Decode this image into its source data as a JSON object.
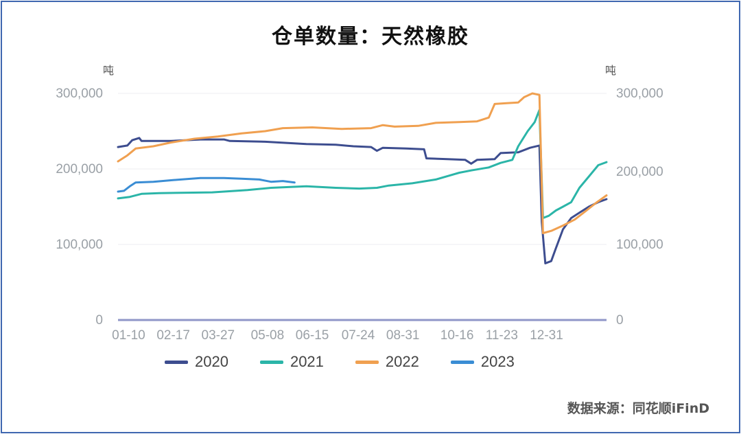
{
  "chart_data": {
    "type": "line",
    "title": "仓单数量：天然橡胶",
    "ylabel_left": "吨",
    "ylabel_right": "吨",
    "ylim": [
      0,
      300000
    ],
    "yticks_left": [
      "0",
      "100,000",
      "200,000",
      "300,000"
    ],
    "yticks_right": [
      "0",
      "100,000",
      "200,000",
      "300,000"
    ],
    "x_range_days": [
      0,
      365
    ],
    "xticks": [
      {
        "label": "01-10",
        "day": 9
      },
      {
        "label": "02-17",
        "day": 47
      },
      {
        "label": "03-27",
        "day": 85
      },
      {
        "label": "05-08",
        "day": 127
      },
      {
        "label": "06-15",
        "day": 165
      },
      {
        "label": "07-24",
        "day": 204
      },
      {
        "label": "08-31",
        "day": 242
      },
      {
        "label": "10-16",
        "day": 288
      },
      {
        "label": "11-23",
        "day": 326
      },
      {
        "label": "12-31",
        "day": 364
      }
    ],
    "grid": true,
    "legend_position": "bottom",
    "series": [
      {
        "name": "2020",
        "color": "#3d4d8f",
        "points": [
          [
            0,
            229000
          ],
          [
            8,
            231000
          ],
          [
            12,
            238000
          ],
          [
            18,
            241000
          ],
          [
            20,
            237000
          ],
          [
            45,
            237000
          ],
          [
            70,
            239000
          ],
          [
            90,
            239000
          ],
          [
            95,
            237000
          ],
          [
            125,
            236000
          ],
          [
            160,
            233000
          ],
          [
            185,
            232000
          ],
          [
            200,
            230000
          ],
          [
            215,
            229000
          ],
          [
            220,
            224000
          ],
          [
            225,
            228000
          ],
          [
            245,
            227000
          ],
          [
            260,
            226000
          ],
          [
            262,
            214000
          ],
          [
            280,
            213000
          ],
          [
            295,
            212000
          ],
          [
            300,
            207000
          ],
          [
            305,
            212000
          ],
          [
            320,
            213000
          ],
          [
            325,
            221000
          ],
          [
            340,
            222000
          ],
          [
            350,
            228000
          ],
          [
            358,
            231000
          ],
          [
            360,
            130000
          ],
          [
            363,
            75000
          ],
          [
            368,
            78000
          ],
          [
            372,
            95000
          ],
          [
            378,
            120000
          ],
          [
            385,
            135000
          ],
          [
            392,
            142000
          ],
          [
            400,
            150000
          ],
          [
            408,
            156000
          ],
          [
            415,
            160000
          ]
        ]
      },
      {
        "name": "2021",
        "color": "#2bb5a8",
        "points": [
          [
            0,
            161000
          ],
          [
            10,
            163000
          ],
          [
            20,
            167000
          ],
          [
            35,
            168000
          ],
          [
            80,
            169000
          ],
          [
            110,
            172000
          ],
          [
            130,
            175000
          ],
          [
            160,
            177000
          ],
          [
            185,
            175000
          ],
          [
            205,
            174000
          ],
          [
            220,
            175000
          ],
          [
            230,
            178000
          ],
          [
            250,
            181000
          ],
          [
            270,
            186000
          ],
          [
            290,
            195000
          ],
          [
            300,
            198000
          ],
          [
            315,
            202000
          ],
          [
            325,
            208000
          ],
          [
            335,
            212000
          ],
          [
            340,
            230000
          ],
          [
            348,
            250000
          ],
          [
            354,
            262000
          ],
          [
            358,
            278000
          ],
          [
            361,
            135000
          ],
          [
            366,
            138000
          ],
          [
            372,
            145000
          ],
          [
            378,
            150000
          ],
          [
            385,
            156000
          ],
          [
            392,
            175000
          ],
          [
            400,
            190000
          ],
          [
            408,
            205000
          ],
          [
            415,
            209000
          ]
        ]
      },
      {
        "name": "2022",
        "color": "#f0a050",
        "points": [
          [
            0,
            210000
          ],
          [
            8,
            218000
          ],
          [
            15,
            227000
          ],
          [
            30,
            230000
          ],
          [
            45,
            235000
          ],
          [
            65,
            240000
          ],
          [
            85,
            243000
          ],
          [
            105,
            247000
          ],
          [
            125,
            250000
          ],
          [
            140,
            254000
          ],
          [
            165,
            255000
          ],
          [
            190,
            253000
          ],
          [
            215,
            254000
          ],
          [
            225,
            258000
          ],
          [
            235,
            256000
          ],
          [
            255,
            257000
          ],
          [
            270,
            261000
          ],
          [
            290,
            262000
          ],
          [
            305,
            263000
          ],
          [
            315,
            268000
          ],
          [
            320,
            286000
          ],
          [
            330,
            287000
          ],
          [
            340,
            288000
          ],
          [
            345,
            295000
          ],
          [
            352,
            300000
          ],
          [
            358,
            298000
          ],
          [
            361,
            115000
          ],
          [
            368,
            118000
          ],
          [
            378,
            125000
          ],
          [
            388,
            133000
          ],
          [
            398,
            145000
          ],
          [
            406,
            155000
          ],
          [
            415,
            165000
          ]
        ]
      },
      {
        "name": "2023",
        "color": "#3a8dd4",
        "points": [
          [
            0,
            170000
          ],
          [
            5,
            171000
          ],
          [
            10,
            177000
          ],
          [
            15,
            182000
          ],
          [
            30,
            183000
          ],
          [
            45,
            185000
          ],
          [
            70,
            188000
          ],
          [
            90,
            188000
          ],
          [
            105,
            187000
          ],
          [
            120,
            186000
          ],
          [
            130,
            183000
          ],
          [
            140,
            184000
          ],
          [
            150,
            182000
          ]
        ]
      }
    ]
  },
  "source": "数据来源：同花顺iFinD"
}
